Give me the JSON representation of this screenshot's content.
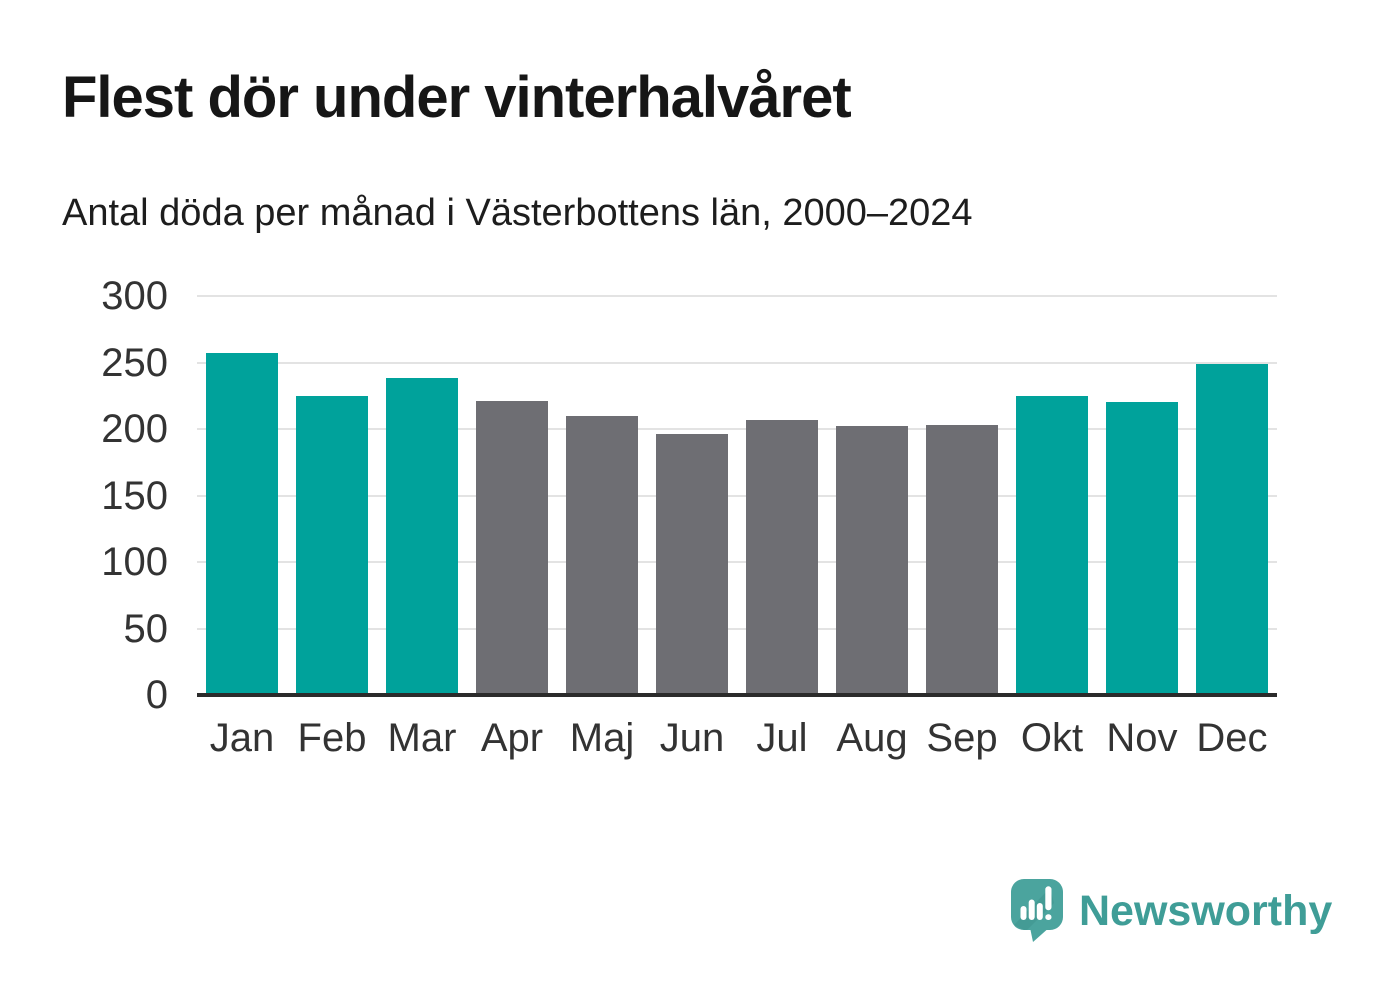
{
  "header": {
    "title": "Flest dör under vinterhalvåret",
    "subtitle": "Antal döda per månad i Västerbottens län, 2000–2024"
  },
  "footer": {
    "brand": "Newsworthy"
  },
  "colors": {
    "winter_bar": "#00a29b",
    "summer_bar": "#6e6e73",
    "gridline": "#e3e3e3",
    "axis_line": "#2b2b2b",
    "tick_text": "#333333",
    "title_text": "#161616",
    "brand_text": "#3f9d97",
    "logo_bubble": "#4ba49e",
    "logo_bubble_shade": "#3f938e"
  },
  "chart_data": {
    "type": "bar",
    "title": "Flest dör under vinterhalvåret",
    "subtitle": "Antal döda per månad i Västerbottens län, 2000–2024",
    "categories": [
      "Jan",
      "Feb",
      "Mar",
      "Apr",
      "Maj",
      "Jun",
      "Jul",
      "Aug",
      "Sep",
      "Okt",
      "Nov",
      "Dec"
    ],
    "values": [
      257,
      225,
      238,
      221,
      210,
      196,
      207,
      202,
      203,
      225,
      220,
      249
    ],
    "bar_colors": [
      "#00a29b",
      "#00a29b",
      "#00a29b",
      "#6e6e73",
      "#6e6e73",
      "#6e6e73",
      "#6e6e73",
      "#6e6e73",
      "#6e6e73",
      "#00a29b",
      "#00a29b",
      "#00a29b"
    ],
    "xlabel": "",
    "ylabel": "",
    "ylim": [
      0,
      300
    ],
    "yticks": [
      0,
      50,
      100,
      150,
      200,
      250,
      300
    ],
    "grid": true,
    "grid_axis": "y",
    "legend_position": "none"
  }
}
